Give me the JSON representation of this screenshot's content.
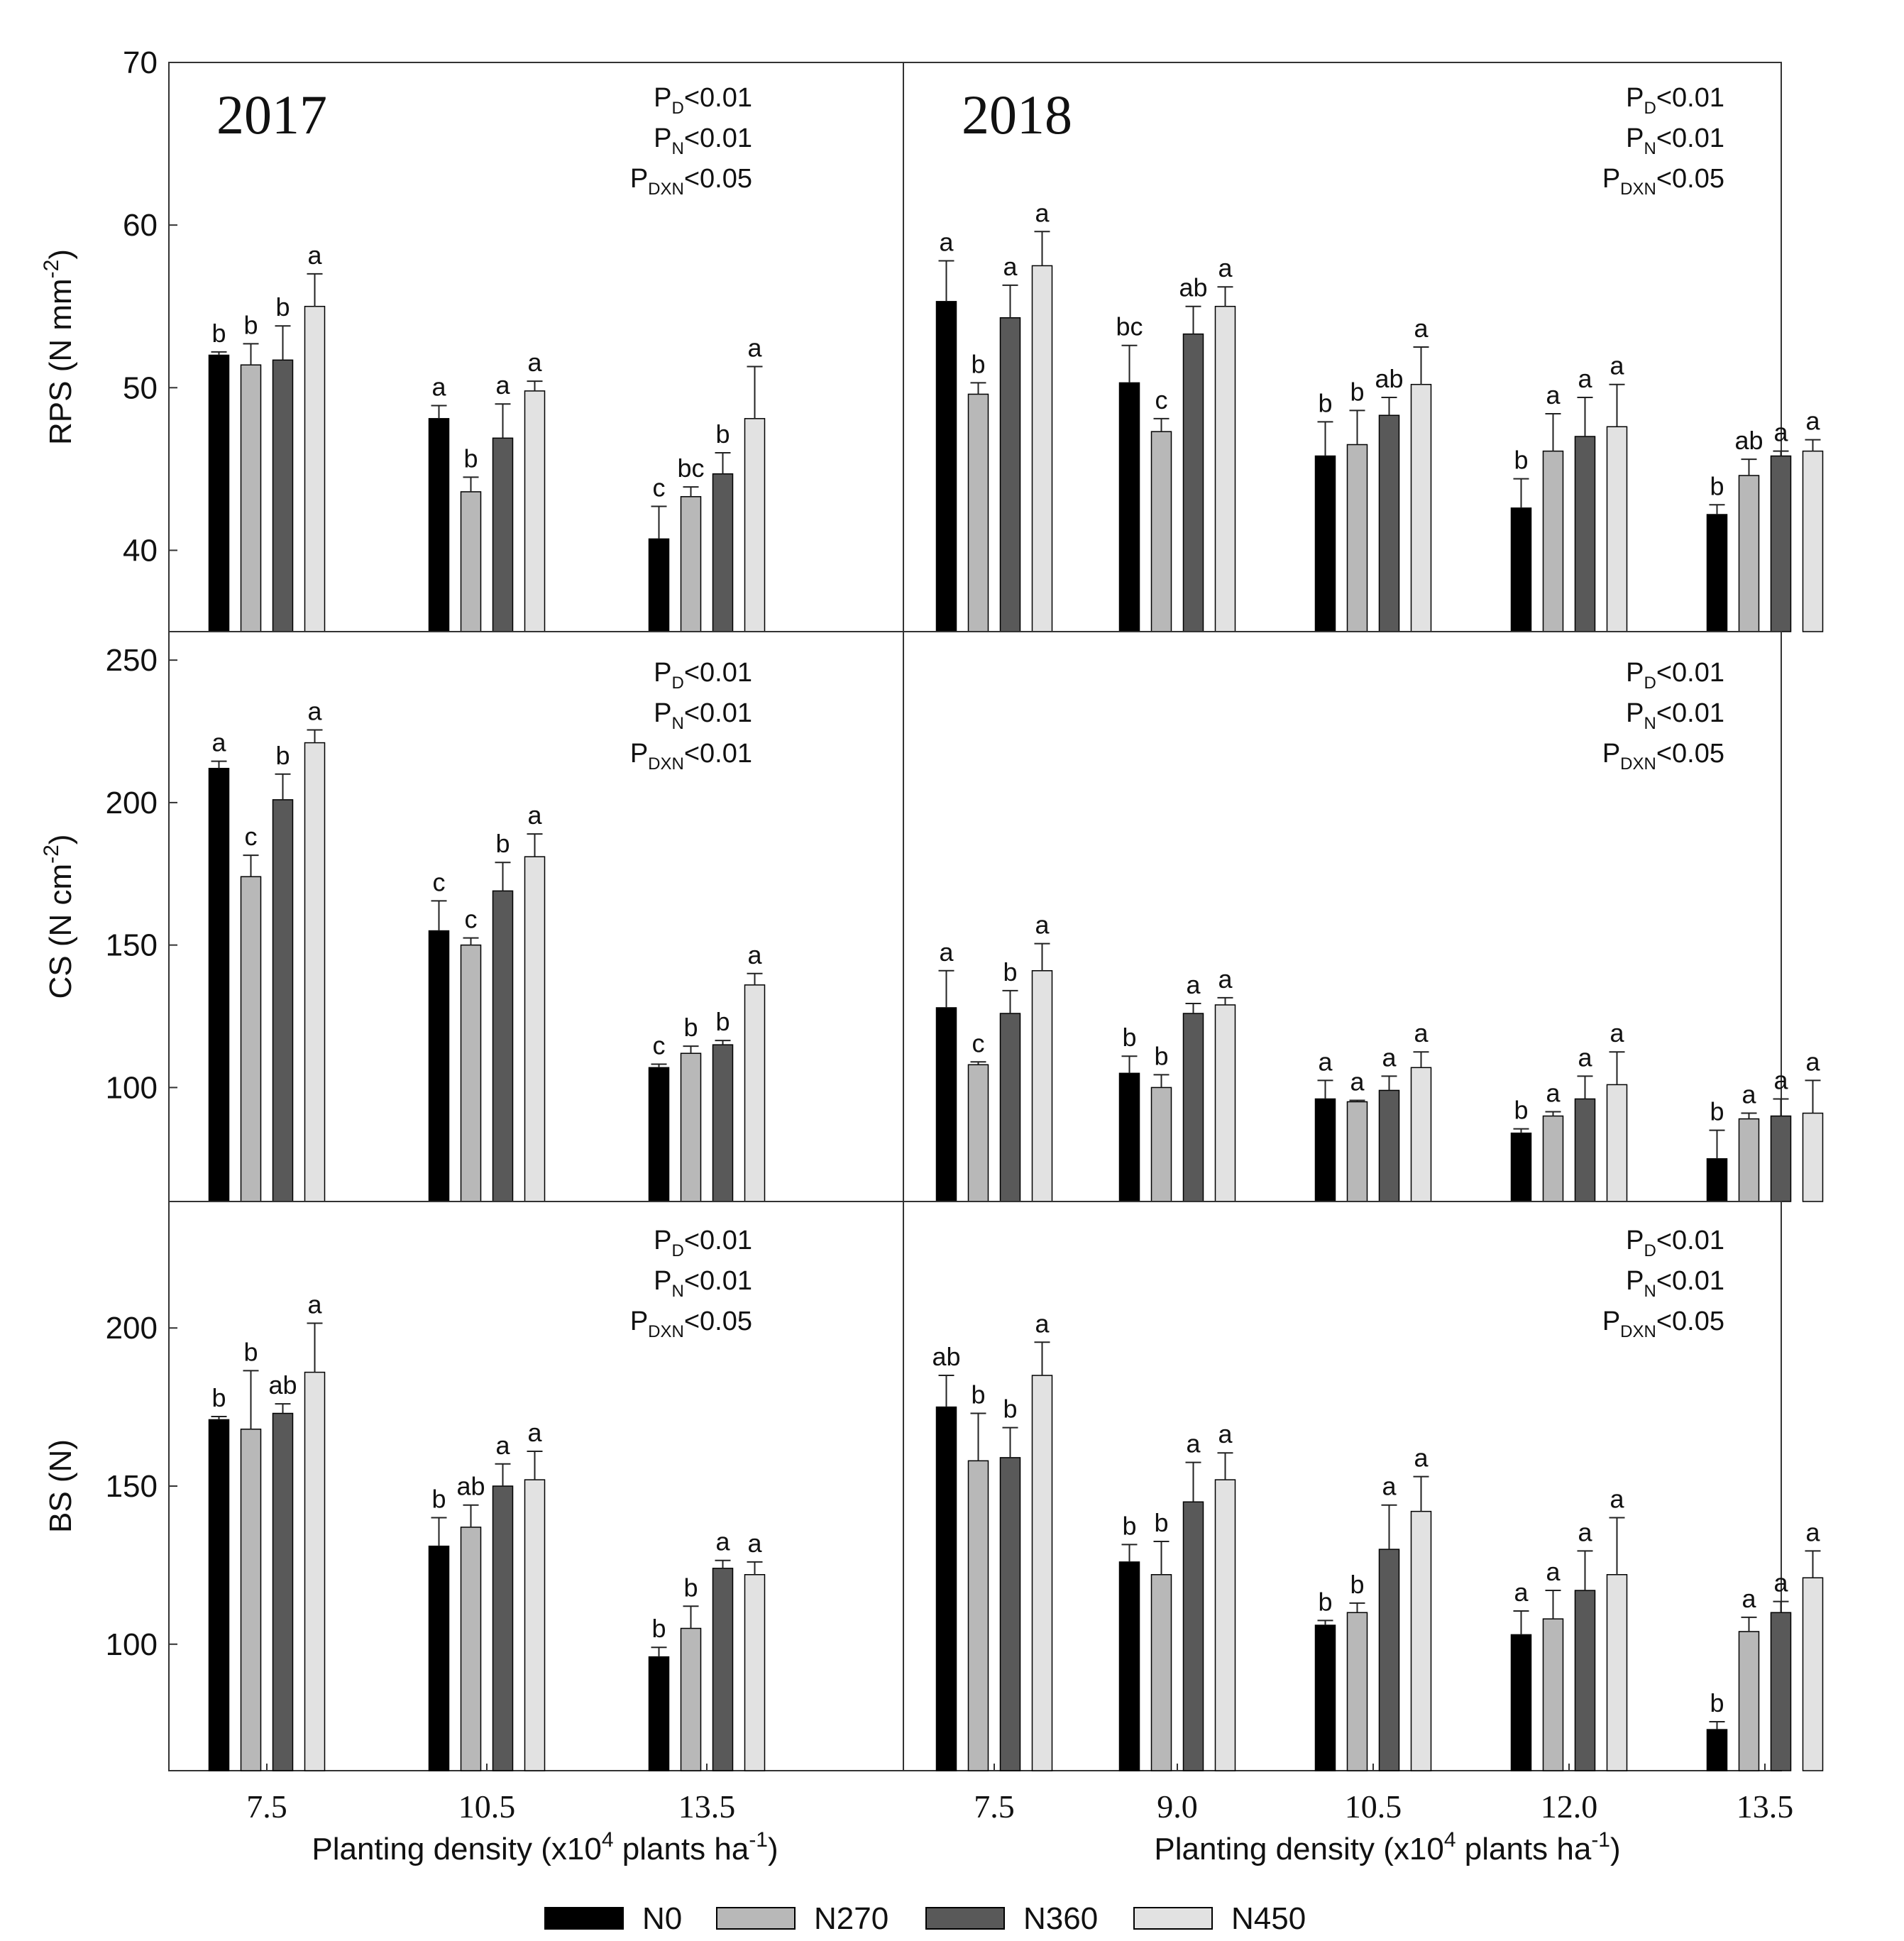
{
  "legend": [
    {
      "name": "N0",
      "color": "#000000"
    },
    {
      "name": "N270",
      "color": "#b8b8b8"
    },
    {
      "name": "N360",
      "color": "#595959"
    },
    {
      "name": "N450",
      "color": "#e2e2e2"
    }
  ],
  "years": {
    "left": "2017",
    "right": "2018"
  },
  "x_axis_label": {
    "main": "Planting density (x10",
    "sup": "4",
    "mid": " plants ha",
    "sup2": "-1",
    "end": ")"
  },
  "chart_data": [
    {
      "type": "bar",
      "panel": "RPS-2017",
      "ylabel": {
        "main": "RPS (N mm",
        "sup": "-2",
        "end": ")"
      },
      "ylim": [
        35,
        70
      ],
      "yticks": [
        40,
        50,
        60,
        70
      ],
      "categories": [
        "7.5",
        "10.5",
        "13.5"
      ],
      "series": [
        {
          "name": "N0",
          "values": [
            52.0,
            48.1,
            40.7
          ],
          "errors": [
            0.2,
            0.8,
            2.0
          ],
          "letters": [
            "b",
            "a",
            "c"
          ]
        },
        {
          "name": "N270",
          "values": [
            51.4,
            43.6,
            43.3
          ],
          "errors": [
            1.3,
            0.9,
            0.6
          ],
          "letters": [
            "b",
            "b",
            "bc"
          ]
        },
        {
          "name": "N360",
          "values": [
            51.7,
            46.9,
            44.7
          ],
          "errors": [
            2.1,
            2.1,
            1.3
          ],
          "letters": [
            "b",
            "a",
            "b"
          ]
        },
        {
          "name": "N450",
          "values": [
            55.0,
            49.8,
            48.1
          ],
          "errors": [
            2.0,
            0.6,
            3.2
          ],
          "letters": [
            "a",
            "a",
            "a"
          ]
        }
      ],
      "stats": [
        {
          "p": "P",
          "sub": "D",
          "rest": "<0.01"
        },
        {
          "p": "P",
          "sub": "N",
          "rest": "<0.01"
        },
        {
          "p": "P",
          "sub": "DXN",
          "rest": "<0.05"
        }
      ]
    },
    {
      "type": "bar",
      "panel": "RPS-2018",
      "ylim": [
        35,
        70
      ],
      "categories": [
        "7.5",
        "9.0",
        "10.5",
        "12.0",
        "13.5"
      ],
      "series": [
        {
          "name": "N0",
          "values": [
            55.3,
            50.3,
            45.8,
            42.6,
            42.2
          ],
          "errors": [
            2.5,
            2.3,
            2.1,
            1.8,
            0.6
          ],
          "letters": [
            "a",
            "bc",
            "b",
            "b",
            "b"
          ]
        },
        {
          "name": "N270",
          "values": [
            49.6,
            47.3,
            46.5,
            46.1,
            44.6
          ],
          "errors": [
            0.7,
            0.8,
            2.1,
            2.3,
            1.0
          ],
          "letters": [
            "b",
            "c",
            "b",
            "a",
            "ab"
          ]
        },
        {
          "name": "N360",
          "values": [
            54.3,
            53.3,
            48.3,
            47.0,
            45.8
          ],
          "errors": [
            2.0,
            1.7,
            1.1,
            2.4,
            0.3
          ],
          "letters": [
            "a",
            "ab",
            "ab",
            "a",
            "a"
          ]
        },
        {
          "name": "N450",
          "values": [
            57.5,
            55.0,
            50.2,
            47.6,
            46.1
          ],
          "errors": [
            2.1,
            1.2,
            2.3,
            2.6,
            0.7
          ],
          "letters": [
            "a",
            "a",
            "a",
            "a",
            "a"
          ]
        }
      ],
      "stats": [
        {
          "p": "P",
          "sub": "D",
          "rest": "<0.01"
        },
        {
          "p": "P",
          "sub": "N",
          "rest": "<0.01"
        },
        {
          "p": "P",
          "sub": "DXN",
          "rest": "<0.05"
        }
      ]
    },
    {
      "type": "bar",
      "panel": "CS-2017",
      "ylabel": {
        "main": "CS (N cm",
        "sup": "-2",
        "end": ")"
      },
      "ylim": [
        60,
        260
      ],
      "yticks": [
        100,
        150,
        200,
        250
      ],
      "categories": [
        "7.5",
        "10.5",
        "13.5"
      ],
      "series": [
        {
          "name": "N0",
          "values": [
            212,
            155,
            107
          ],
          "errors": [
            2.5,
            10.5,
            1.2
          ],
          "letters": [
            "a",
            "c",
            "c"
          ]
        },
        {
          "name": "N270",
          "values": [
            174,
            150,
            112
          ],
          "errors": [
            7.5,
            2.5,
            2.5
          ],
          "letters": [
            "c",
            "c",
            "b"
          ]
        },
        {
          "name": "N360",
          "values": [
            201,
            169,
            115
          ],
          "errors": [
            9.0,
            10.0,
            1.5
          ],
          "letters": [
            "b",
            "b",
            "b"
          ]
        },
        {
          "name": "N450",
          "values": [
            221,
            181,
            136
          ],
          "errors": [
            4.5,
            8.0,
            4.0
          ],
          "letters": [
            "a",
            "a",
            "a"
          ]
        }
      ],
      "stats": [
        {
          "p": "P",
          "sub": "D",
          "rest": "<0.01"
        },
        {
          "p": "P",
          "sub": "N",
          "rest": "<0.01"
        },
        {
          "p": "P",
          "sub": "DXN",
          "rest": "<0.01"
        }
      ]
    },
    {
      "type": "bar",
      "panel": "CS-2018",
      "ylim": [
        60,
        260
      ],
      "categories": [
        "7.5",
        "9.0",
        "10.5",
        "12.0",
        "13.5"
      ],
      "series": [
        {
          "name": "N0",
          "values": [
            128,
            105,
            96,
            84,
            75
          ],
          "errors": [
            13.0,
            6.0,
            6.5,
            1.5,
            10.0
          ],
          "letters": [
            "a",
            "b",
            "a",
            "b",
            "b"
          ]
        },
        {
          "name": "N270",
          "values": [
            108,
            100,
            95,
            90,
            89
          ],
          "errors": [
            1.0,
            4.5,
            0.5,
            1.5,
            2.0
          ],
          "letters": [
            "c",
            "b",
            "a",
            "a",
            "a"
          ]
        },
        {
          "name": "N360",
          "values": [
            126,
            126,
            99,
            96,
            90
          ],
          "errors": [
            8.0,
            3.5,
            5.0,
            8.0,
            6.0
          ],
          "letters": [
            "b",
            "a",
            "a",
            "a",
            "a"
          ]
        },
        {
          "name": "N450",
          "values": [
            141,
            129,
            107,
            101,
            91
          ],
          "errors": [
            9.5,
            2.5,
            5.5,
            11.5,
            11.5
          ],
          "letters": [
            "a",
            "a",
            "a",
            "a",
            "a"
          ]
        }
      ],
      "stats": [
        {
          "p": "P",
          "sub": "D",
          "rest": "<0.01"
        },
        {
          "p": "P",
          "sub": "N",
          "rest": "<0.01"
        },
        {
          "p": "P",
          "sub": "DXN",
          "rest": "<0.05"
        }
      ]
    },
    {
      "type": "bar",
      "panel": "BS-2017",
      "ylabel": {
        "main": "BS (N)",
        "sup": "",
        "end": ""
      },
      "ylim": [
        60,
        240
      ],
      "yticks": [
        100,
        150,
        200
      ],
      "categories": [
        "7.5",
        "10.5",
        "13.5"
      ],
      "series": [
        {
          "name": "N0",
          "values": [
            171,
            131,
            96
          ],
          "errors": [
            1.0,
            9.0,
            3.0
          ],
          "letters": [
            "b",
            "b",
            "b"
          ]
        },
        {
          "name": "N270",
          "values": [
            168,
            137,
            105
          ],
          "errors": [
            18.5,
            7.0,
            7.0
          ],
          "letters": [
            "b",
            "ab",
            "b"
          ]
        },
        {
          "name": "N360",
          "values": [
            173,
            150,
            124
          ],
          "errors": [
            3.0,
            7.0,
            2.5
          ],
          "letters": [
            "ab",
            "a",
            "a"
          ]
        },
        {
          "name": "N450",
          "values": [
            186,
            152,
            122
          ],
          "errors": [
            15.5,
            9.0,
            4.0
          ],
          "letters": [
            "a",
            "a",
            "a"
          ]
        }
      ],
      "stats": [
        {
          "p": "P",
          "sub": "D",
          "rest": "<0.01"
        },
        {
          "p": "P",
          "sub": "N",
          "rest": "<0.01"
        },
        {
          "p": "P",
          "sub": "DXN",
          "rest": "<0.05"
        }
      ]
    },
    {
      "type": "bar",
      "panel": "BS-2018",
      "ylim": [
        60,
        240
      ],
      "categories": [
        "7.5",
        "9.0",
        "10.5",
        "12.0",
        "13.5"
      ],
      "series": [
        {
          "name": "N0",
          "values": [
            175,
            126,
            106,
            103,
            73
          ],
          "errors": [
            10.0,
            5.5,
            1.5,
            7.5,
            2.5
          ],
          "letters": [
            "ab",
            "b",
            "b",
            "a",
            "b"
          ]
        },
        {
          "name": "N270",
          "values": [
            158,
            122,
            110,
            108,
            104
          ],
          "errors": [
            15.0,
            10.5,
            3.0,
            9.0,
            4.5
          ],
          "letters": [
            "b",
            "b",
            "b",
            "a",
            "a"
          ]
        },
        {
          "name": "N360",
          "values": [
            159,
            145,
            130,
            117,
            110
          ],
          "errors": [
            9.5,
            12.5,
            14.0,
            12.5,
            3.5
          ],
          "letters": [
            "b",
            "a",
            "a",
            "a",
            "a"
          ]
        },
        {
          "name": "N450",
          "values": [
            185,
            152,
            142,
            122,
            121
          ],
          "errors": [
            10.5,
            8.5,
            11.0,
            18.0,
            8.5
          ],
          "letters": [
            "a",
            "a",
            "a",
            "a",
            "a"
          ]
        }
      ],
      "stats": [
        {
          "p": "P",
          "sub": "D",
          "rest": "<0.01"
        },
        {
          "p": "P",
          "sub": "N",
          "rest": "<0.01"
        },
        {
          "p": "P",
          "sub": "DXN",
          "rest": "<0.05"
        }
      ]
    }
  ]
}
